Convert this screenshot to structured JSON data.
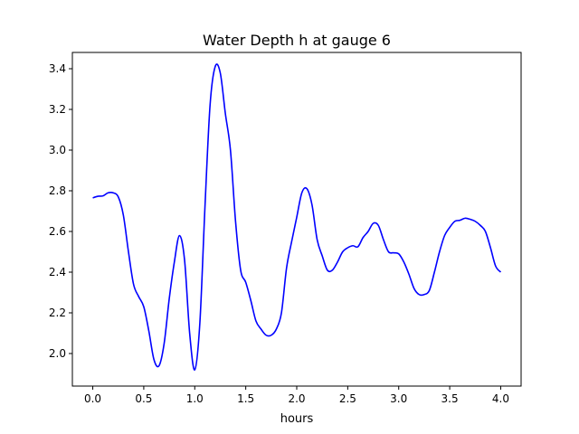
{
  "chart_data": {
    "type": "line",
    "title": "Water Depth h at gauge 6",
    "xlabel": "hours",
    "ylabel": "",
    "xlim": [
      -0.2,
      4.2
    ],
    "ylim": [
      1.84,
      3.48
    ],
    "xticks": [
      0.0,
      0.5,
      1.0,
      1.5,
      2.0,
      2.5,
      3.0,
      3.5,
      4.0
    ],
    "xtick_labels": [
      "0.0",
      "0.5",
      "1.0",
      "1.5",
      "2.0",
      "2.5",
      "3.0",
      "3.5",
      "4.0"
    ],
    "yticks": [
      2.0,
      2.2,
      2.4,
      2.6,
      2.8,
      3.0,
      3.2,
      3.4
    ],
    "ytick_labels": [
      "2.0",
      "2.2",
      "2.4",
      "2.6",
      "2.8",
      "3.0",
      "3.2",
      "3.4"
    ],
    "grid": false,
    "series": [
      {
        "color": "#0000ff",
        "x": [
          0.0,
          0.05,
          0.1,
          0.15,
          0.2,
          0.25,
          0.3,
          0.35,
          0.4,
          0.45,
          0.5,
          0.55,
          0.6,
          0.65,
          0.7,
          0.75,
          0.8,
          0.85,
          0.9,
          0.95,
          1.0,
          1.05,
          1.1,
          1.15,
          1.2,
          1.25,
          1.3,
          1.35,
          1.4,
          1.45,
          1.5,
          1.55,
          1.6,
          1.65,
          1.7,
          1.75,
          1.8,
          1.85,
          1.9,
          1.95,
          2.0,
          2.05,
          2.1,
          2.15,
          2.2,
          2.25,
          2.3,
          2.35,
          2.4,
          2.45,
          2.5,
          2.55,
          2.6,
          2.65,
          2.7,
          2.75,
          2.8,
          2.85,
          2.9,
          2.95,
          3.0,
          3.05,
          3.1,
          3.15,
          3.2,
          3.25,
          3.3,
          3.35,
          3.4,
          3.45,
          3.5,
          3.55,
          3.6,
          3.65,
          3.7,
          3.75,
          3.8,
          3.85,
          3.9,
          3.95,
          4.0
        ],
        "values": [
          2.765,
          2.773,
          2.775,
          2.79,
          2.79,
          2.77,
          2.68,
          2.5,
          2.34,
          2.28,
          2.23,
          2.11,
          1.97,
          1.94,
          2.05,
          2.27,
          2.45,
          2.58,
          2.46,
          2.1,
          1.92,
          2.15,
          2.72,
          3.22,
          3.41,
          3.38,
          3.18,
          3.0,
          2.65,
          2.41,
          2.35,
          2.26,
          2.16,
          2.12,
          2.09,
          2.09,
          2.12,
          2.2,
          2.42,
          2.55,
          2.67,
          2.79,
          2.81,
          2.73,
          2.56,
          2.48,
          2.41,
          2.41,
          2.45,
          2.5,
          2.52,
          2.53,
          2.525,
          2.57,
          2.6,
          2.64,
          2.63,
          2.56,
          2.5,
          2.495,
          2.49,
          2.45,
          2.39,
          2.32,
          2.29,
          2.29,
          2.31,
          2.4,
          2.5,
          2.58,
          2.62,
          2.65,
          2.655,
          2.665,
          2.66,
          2.65,
          2.63,
          2.6,
          2.52,
          2.43,
          2.4
        ]
      }
    ]
  }
}
